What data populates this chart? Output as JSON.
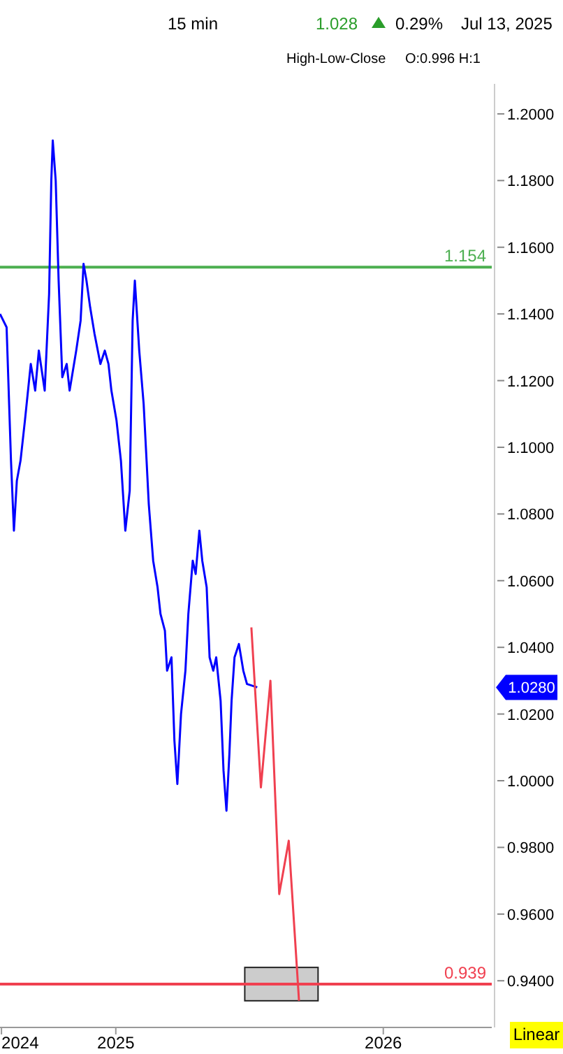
{
  "chart_data": {
    "type": "line",
    "title": "15 min",
    "subtitle": "High-Low-Close",
    "annotations": [
      "1.028",
      "0.29%",
      "Jul 13, 2025",
      "O:0.996 H:1",
      "Linear",
      "1.0280"
    ],
    "series": [
      {
        "color": "#0000ff",
        "x": [
          "2024-07-27",
          "2024-08-05",
          "2024-08-11",
          "2024-08-15",
          "2024-08-19",
          "2024-08-24",
          "2024-08-30",
          "2024-09-07",
          "2024-09-13",
          "2024-09-18",
          "2024-09-26",
          "2024-10-02",
          "2024-10-05",
          "2024-10-07",
          "2024-10-11",
          "2024-10-15",
          "2024-10-20",
          "2024-10-26",
          "2024-10-30",
          "2024-11-08",
          "2024-11-14",
          "2024-11-18",
          "2024-11-22",
          "2024-11-27",
          "2024-12-03",
          "2024-12-11",
          "2024-12-17",
          "2024-12-22",
          "2024-12-26",
          "2025-01-02",
          "2025-01-08",
          "2025-01-14",
          "2025-01-20",
          "2025-01-24",
          "2025-01-27",
          "2025-02-02",
          "2025-02-08",
          "2025-02-12",
          "2025-02-15",
          "2025-02-21",
          "2025-02-27",
          "2025-03-03",
          "2025-03-09",
          "2025-03-12",
          "2025-03-18",
          "2025-03-22",
          "2025-03-26",
          "2025-03-31",
          "2025-04-06",
          "2025-04-10",
          "2025-04-16",
          "2025-04-20",
          "2025-04-25",
          "2025-04-29",
          "2025-05-05",
          "2025-05-09",
          "2025-05-14",
          "2025-05-18",
          "2025-05-24",
          "2025-05-28",
          "2025-06-01",
          "2025-06-05",
          "2025-06-08",
          "2025-06-12",
          "2025-06-18",
          "2025-06-24",
          "2025-06-29",
          "2025-07-13"
        ],
        "values": [
          1.14,
          1.136,
          1.096,
          1.075,
          1.09,
          1.096,
          1.108,
          1.125,
          1.117,
          1.129,
          1.117,
          1.146,
          1.18,
          1.192,
          1.18,
          1.15,
          1.121,
          1.125,
          1.117,
          1.129,
          1.138,
          1.155,
          1.15,
          1.142,
          1.134,
          1.125,
          1.129,
          1.125,
          1.117,
          1.108,
          1.096,
          1.075,
          1.087,
          1.138,
          1.15,
          1.129,
          1.113,
          1.096,
          1.083,
          1.066,
          1.058,
          1.05,
          1.045,
          1.033,
          1.037,
          1.012,
          0.999,
          1.02,
          1.033,
          1.05,
          1.066,
          1.062,
          1.075,
          1.066,
          1.058,
          1.037,
          1.033,
          1.037,
          1.024,
          1.003,
          0.991,
          1.008,
          1.024,
          1.037,
          1.041,
          1.033,
          1.029,
          1.028
        ]
      },
      {
        "color": "#f04050",
        "x": [
          "2025-07-05",
          "2025-07-18",
          "2025-07-31",
          "2025-08-12",
          "2025-08-25",
          "2025-09-08"
        ],
        "values": [
          1.046,
          0.998,
          1.03,
          0.966,
          0.982,
          0.934
        ]
      }
    ],
    "xlim": [
      "2024-07-27",
      "2026-05-29"
    ],
    "xticks": [
      {
        "value": "2024-07-29",
        "label": "2024"
      },
      {
        "value": "2025-01-01",
        "label": "2025"
      },
      {
        "value": "2026-01-01",
        "label": "2026"
      }
    ],
    "ylim": [
      0.926,
      1.209
    ],
    "yticks": [
      {
        "value": 0.94,
        "label": "0.9400"
      },
      {
        "value": 0.96,
        "label": "0.9600"
      },
      {
        "value": 0.98,
        "label": "0.9800"
      },
      {
        "value": 1.0,
        "label": "1.0000"
      },
      {
        "value": 1.02,
        "label": "1.0200"
      },
      {
        "value": 1.04,
        "label": "1.0400"
      },
      {
        "value": 1.06,
        "label": "1.0600"
      },
      {
        "value": 1.08,
        "label": "1.0800"
      },
      {
        "value": 1.1,
        "label": "1.1000"
      },
      {
        "value": 1.12,
        "label": "1.1200"
      },
      {
        "value": 1.14,
        "label": "1.1400"
      },
      {
        "value": 1.16,
        "label": "1.1600"
      },
      {
        "value": 1.18,
        "label": "1.1800"
      },
      {
        "value": 1.2,
        "label": "1.2000"
      }
    ],
    "ref_lines": [
      {
        "axis": "y",
        "value": 1.154,
        "label": "1.154",
        "color": "#4caf50"
      },
      {
        "axis": "y",
        "value": 0.939,
        "label": "0.939",
        "color": "#f04050"
      }
    ],
    "grid": false
  }
}
